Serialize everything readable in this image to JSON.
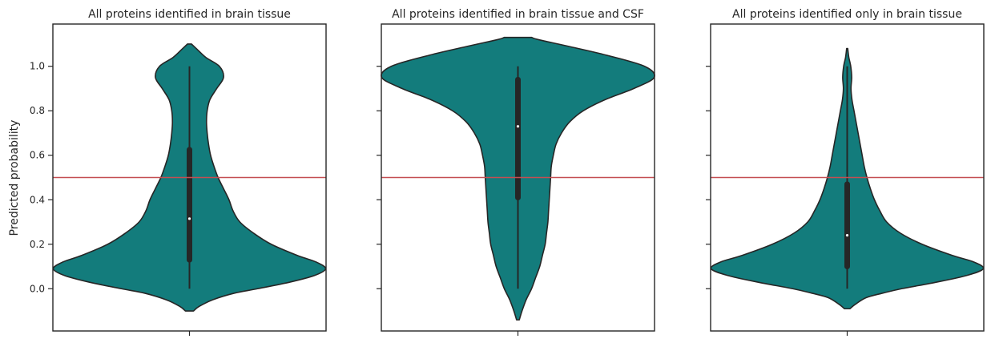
{
  "colors": {
    "violin_fill": "#137c7c",
    "violin_edge": "#262626",
    "box": "#262626",
    "median": "#ffffff",
    "threshold_line": "#c44e52",
    "frame": "#262626",
    "text": "#262626"
  },
  "chart_data": {
    "type": "violin",
    "ylabel": "Predicted probability",
    "ylim": [
      -0.19,
      1.19
    ],
    "yticks": [
      0.0,
      0.2,
      0.4,
      0.6,
      0.8,
      1.0
    ],
    "ytick_labels": [
      "0.0",
      "0.2",
      "0.4",
      "0.6",
      "0.8",
      "1.0"
    ],
    "shared_y": true,
    "grid": false,
    "threshold": 0.5,
    "panels": [
      {
        "title": "All proteins identified in brain tissue",
        "stats": {
          "whisker_low": 0.0,
          "q1": 0.13,
          "median": 0.315,
          "q3": 0.625,
          "whisker_high": 1.0
        },
        "profile": [
          [
            -0.1,
            0.03
          ],
          [
            -0.08,
            0.07
          ],
          [
            -0.05,
            0.17
          ],
          [
            -0.02,
            0.33
          ],
          [
            0.0,
            0.5
          ],
          [
            0.03,
            0.74
          ],
          [
            0.06,
            0.92
          ],
          [
            0.09,
            1.0
          ],
          [
            0.12,
            0.93
          ],
          [
            0.15,
            0.79
          ],
          [
            0.2,
            0.6
          ],
          [
            0.25,
            0.47
          ],
          [
            0.3,
            0.37
          ],
          [
            0.35,
            0.32
          ],
          [
            0.4,
            0.29
          ],
          [
            0.45,
            0.25
          ],
          [
            0.5,
            0.21
          ],
          [
            0.55,
            0.18
          ],
          [
            0.6,
            0.155
          ],
          [
            0.65,
            0.14
          ],
          [
            0.7,
            0.13
          ],
          [
            0.75,
            0.125
          ],
          [
            0.8,
            0.13
          ],
          [
            0.85,
            0.15
          ],
          [
            0.9,
            0.2
          ],
          [
            0.95,
            0.25
          ],
          [
            1.0,
            0.22
          ],
          [
            1.04,
            0.12
          ],
          [
            1.08,
            0.05
          ],
          [
            1.1,
            0.015
          ]
        ]
      },
      {
        "title": "All proteins identified in brain tissue and CSF",
        "stats": {
          "whisker_low": 0.0,
          "q1": 0.41,
          "median": 0.73,
          "q3": 0.94,
          "whisker_high": 1.0
        },
        "profile": [
          [
            -0.14,
            0.01
          ],
          [
            -0.1,
            0.03
          ],
          [
            -0.05,
            0.06
          ],
          [
            0.0,
            0.1
          ],
          [
            0.05,
            0.13
          ],
          [
            0.1,
            0.16
          ],
          [
            0.15,
            0.18
          ],
          [
            0.2,
            0.2
          ],
          [
            0.25,
            0.21
          ],
          [
            0.3,
            0.22
          ],
          [
            0.35,
            0.225
          ],
          [
            0.4,
            0.23
          ],
          [
            0.45,
            0.235
          ],
          [
            0.5,
            0.24
          ],
          [
            0.55,
            0.245
          ],
          [
            0.6,
            0.26
          ],
          [
            0.65,
            0.28
          ],
          [
            0.7,
            0.32
          ],
          [
            0.75,
            0.38
          ],
          [
            0.8,
            0.48
          ],
          [
            0.85,
            0.64
          ],
          [
            0.9,
            0.85
          ],
          [
            0.95,
            1.0
          ],
          [
            1.0,
            0.93
          ],
          [
            1.05,
            0.65
          ],
          [
            1.09,
            0.37
          ],
          [
            1.12,
            0.15
          ],
          [
            1.13,
            0.1
          ]
        ]
      },
      {
        "title": "All proteins identified only in brain tissue",
        "stats": {
          "whisker_low": 0.0,
          "q1": 0.1,
          "median": 0.24,
          "q3": 0.47,
          "whisker_high": 1.0
        },
        "profile": [
          [
            -0.09,
            0.02
          ],
          [
            -0.07,
            0.06
          ],
          [
            -0.04,
            0.14
          ],
          [
            -0.02,
            0.26
          ],
          [
            0.0,
            0.4
          ],
          [
            0.03,
            0.66
          ],
          [
            0.06,
            0.88
          ],
          [
            0.09,
            1.0
          ],
          [
            0.12,
            0.93
          ],
          [
            0.15,
            0.77
          ],
          [
            0.2,
            0.55
          ],
          [
            0.25,
            0.39
          ],
          [
            0.3,
            0.29
          ],
          [
            0.35,
            0.24
          ],
          [
            0.4,
            0.2
          ],
          [
            0.45,
            0.17
          ],
          [
            0.5,
            0.145
          ],
          [
            0.55,
            0.125
          ],
          [
            0.6,
            0.11
          ],
          [
            0.65,
            0.095
          ],
          [
            0.7,
            0.08
          ],
          [
            0.75,
            0.065
          ],
          [
            0.8,
            0.05
          ],
          [
            0.85,
            0.035
          ],
          [
            0.9,
            0.028
          ],
          [
            0.95,
            0.033
          ],
          [
            1.0,
            0.026
          ],
          [
            1.04,
            0.012
          ],
          [
            1.08,
            0.004
          ]
        ]
      }
    ]
  }
}
